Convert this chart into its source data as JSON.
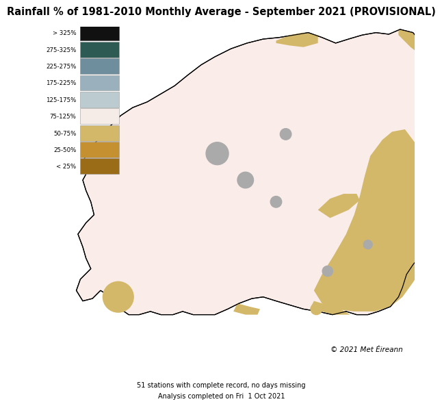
{
  "title": "Rainfall % of 1981-2010 Monthly Average - September 2021 (PROVISIONAL)",
  "title_fontsize": 10.5,
  "legend_labels": [
    "> 325%",
    "275-325%",
    "225-275%",
    "175-225%",
    "125-175%",
    "75-125%",
    "50-75%",
    "25-50%",
    "< 25%"
  ],
  "legend_colors": [
    "#111111",
    "#2d5a52",
    "#6e8e9e",
    "#9ab0bc",
    "#bccbcf",
    "#f5ece8",
    "#d4b86a",
    "#c49030",
    "#9a6c18"
  ],
  "background_color": "#ffffff",
  "copyright_text": "© 2021 Met Éireann",
  "footer_line1": "51 stations with complete record, no days missing",
  "footer_line2": "Analysis completed on Fri  1 Oct 2021",
  "ireland_color": "#f9ece9",
  "east_yellow_color": "#d4b86a",
  "north_patch_color": "#d4b86a",
  "south_patch_color": "#d4b86a",
  "station_circle_color": "#aaaaaa",
  "sw_circle_color": "#d4b86a",
  "map_xlim": [
    -10.7,
    -5.9
  ],
  "map_ylim": [
    51.35,
    55.45
  ]
}
